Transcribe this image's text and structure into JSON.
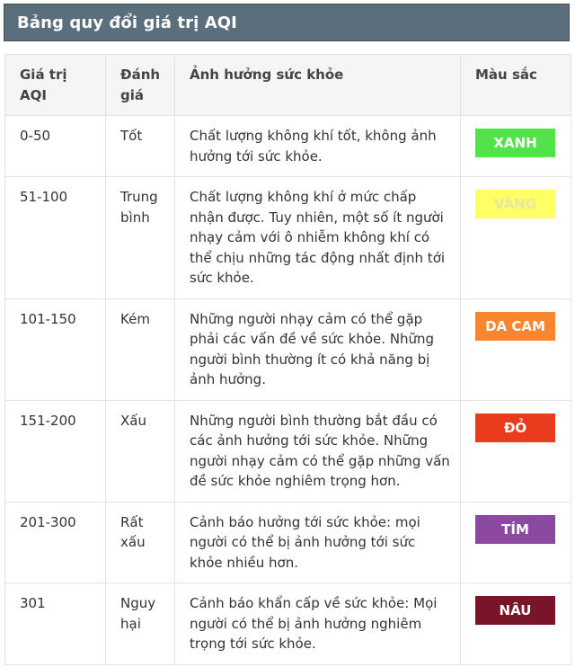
{
  "title": "Bảng quy đổi giá trị AQI",
  "headers": [
    "Giá trị AQI",
    "Đánh giá",
    "Ảnh hưởng sức khỏe",
    "Màu sắc"
  ],
  "rows": [
    {
      "range": "0-50",
      "rating": "Tốt",
      "effect": "Chất lượng không khí tốt, không ảnh hưởng tới sức khỏe.",
      "color_label": "XANH",
      "color_bg": "#52e34a",
      "color_fg": "#ffffff"
    },
    {
      "range": "51-100",
      "rating": "Trung bình",
      "effect": "Chất lượng không khí ở mức chấp nhận được. Tuy nhiên, một số ít người nhạy cảm với ô nhiễm không khí có thể chịu những tác động nhất định tới sức khỏe.",
      "color_label": "VÀNG",
      "color_bg": "#ffff66",
      "color_fg": "#e6e6a3"
    },
    {
      "range": "101-150",
      "rating": "Kém",
      "effect": "Những người nhạy cảm có thể gặp phải các vấn đề về sức khỏe. Những người bình thường ít có khả năng bị ảnh hưởng.",
      "color_label": "DA CAM",
      "color_bg": "#f7862e",
      "color_fg": "#ffffff"
    },
    {
      "range": "151-200",
      "rating": "Xấu",
      "effect": "Những người bình thường bắt đầu có các ảnh hưởng tới sức khỏe. Những người nhạy cảm có thể gặp những vấn đề sức khỏe nghiêm trọng hơn.",
      "color_label": "ĐỎ",
      "color_bg": "#ea3b1f",
      "color_fg": "#ffffff"
    },
    {
      "range": "201-300",
      "rating": "Rất xấu",
      "effect": "Cảnh báo hưởng tới sức khỏe: mọi người có thể bị ảnh hưởng tới sức khỏe nhiều hơn.",
      "color_label": "TÍM",
      "color_bg": "#8b4aa0",
      "color_fg": "#ffffff"
    },
    {
      "range": "301",
      "rating": "Nguy hại",
      "effect": "Cảnh báo khẩn cấp về sức khỏe: Mọi người có thể bị ảnh hưởng nghiêm trọng tới sức khỏe.",
      "color_label": "NÂU",
      "color_bg": "#7a1529",
      "color_fg": "#ffffff"
    }
  ]
}
